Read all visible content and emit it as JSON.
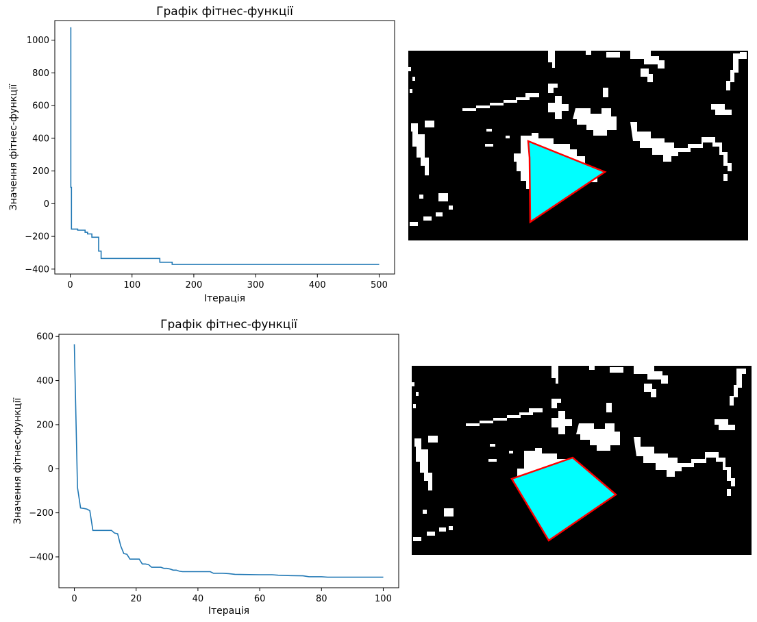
{
  "chart_data": [
    {
      "type": "line",
      "title": "Графік фітнес-функції",
      "xlabel": "Ітерація",
      "ylabel": "Значення фітнес-функції",
      "xlim": [
        -25,
        525
      ],
      "ylim": [
        -430,
        1120
      ],
      "xticks": [
        0,
        100,
        200,
        300,
        400,
        500
      ],
      "yticks": [
        -400,
        -200,
        0,
        200,
        400,
        600,
        800,
        1000
      ],
      "color": "#1f77b4",
      "grid": false,
      "series": [
        {
          "x": [
            0,
            1,
            1,
            2,
            2,
            3,
            3,
            12,
            12,
            24,
            24,
            28,
            28,
            35,
            35,
            46,
            46,
            50,
            50,
            55,
            55,
            145,
            145,
            165,
            165,
            500
          ],
          "values": [
            1075,
            1075,
            100,
            100,
            -155,
            -155,
            -155,
            -155,
            -162,
            -162,
            -175,
            -175,
            -185,
            -185,
            -205,
            -205,
            -290,
            -290,
            -335,
            -335,
            -335,
            -335,
            -358,
            -358,
            -371,
            -371
          ]
        }
      ]
    },
    {
      "type": "line",
      "title": "Графік фітнес-функції",
      "xlabel": "Ітерація",
      "ylabel": "Значення фітнес-функції",
      "xlim": [
        -5,
        105
      ],
      "ylim": [
        -540,
        610
      ],
      "xticks": [
        0,
        20,
        40,
        60,
        80,
        100
      ],
      "yticks": [
        -400,
        -200,
        0,
        200,
        400,
        600
      ],
      "color": "#1f77b4",
      "grid": false,
      "series": [
        {
          "x": [
            0,
            1,
            2,
            3,
            4,
            5,
            6,
            7,
            8,
            9,
            10,
            11,
            12,
            13,
            14,
            15,
            16,
            17,
            18,
            19,
            20,
            21,
            22,
            23,
            24,
            25,
            26,
            27,
            28,
            29,
            30,
            31,
            32,
            33,
            34,
            35,
            36,
            40,
            44,
            45,
            48,
            50,
            52,
            55,
            60,
            64,
            66,
            70,
            74,
            76,
            80,
            82,
            90,
            100
          ],
          "values": [
            565,
            -85,
            -178,
            -180,
            -183,
            -190,
            -280,
            -280,
            -280,
            -280,
            -280,
            -280,
            -280,
            -292,
            -295,
            -350,
            -385,
            -388,
            -410,
            -410,
            -410,
            -410,
            -432,
            -432,
            -435,
            -447,
            -447,
            -447,
            -447,
            -452,
            -452,
            -455,
            -460,
            -460,
            -465,
            -467,
            -467,
            -467,
            -467,
            -474,
            -474,
            -476,
            -479,
            -480,
            -481,
            -481,
            -483,
            -485,
            -486,
            -490,
            -490,
            -492,
            -492,
            -492
          ]
        }
      ]
    }
  ]
}
